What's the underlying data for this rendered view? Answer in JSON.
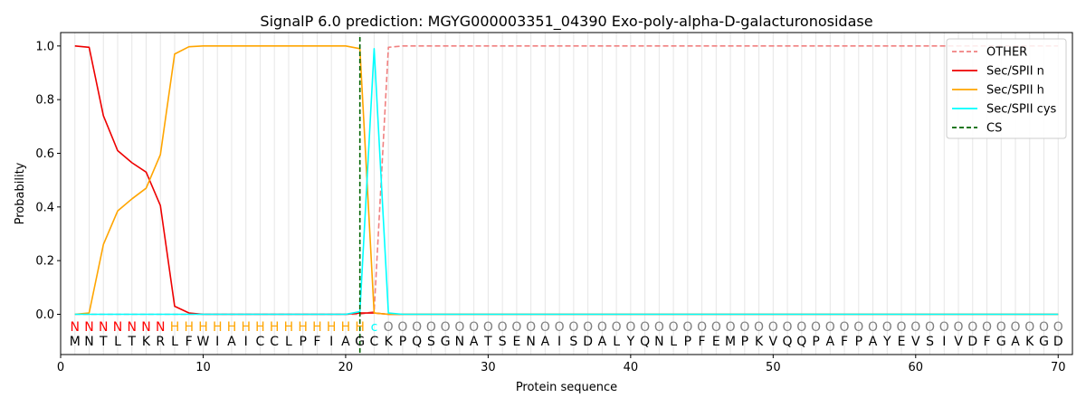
{
  "chart_data": {
    "type": "line",
    "title": "SignalP 6.0 prediction: MGYG000003351_04390 Exo-poly-alpha-D-galacturonosidase",
    "xlabel": "Protein sequence",
    "ylabel": "Probability",
    "xlim": [
      0,
      71
    ],
    "ylim": [
      -0.15,
      1.05
    ],
    "xticks": [
      0,
      10,
      20,
      30,
      40,
      50,
      60,
      70
    ],
    "yticks": [
      0.0,
      0.2,
      0.4,
      0.6,
      0.8,
      1.0
    ],
    "ytick_labels": [
      "0.0",
      "0.2",
      "0.4",
      "0.6",
      "0.8",
      "1.0"
    ],
    "legend_position": "top-right",
    "sequence": [
      "M",
      "N",
      "T",
      "L",
      "T",
      "K",
      "R",
      "L",
      "F",
      "W",
      "I",
      "A",
      "I",
      "C",
      "C",
      "L",
      "P",
      "F",
      "I",
      "A",
      "G",
      "C",
      "K",
      "P",
      "Q",
      "S",
      "G",
      "N",
      "A",
      "T",
      "S",
      "E",
      "N",
      "A",
      "I",
      "S",
      "D",
      "A",
      "L",
      "Y",
      "Q",
      "N",
      "L",
      "P",
      "F",
      "E",
      "M",
      "P",
      "K",
      "V",
      "Q",
      "Q",
      "P",
      "A",
      "F",
      "P",
      "A",
      "Y",
      "E",
      "V",
      "S",
      "I",
      "V",
      "D",
      "F",
      "G",
      "A",
      "K",
      "G",
      "D"
    ],
    "regions": [
      "N",
      "N",
      "N",
      "N",
      "N",
      "N",
      "N",
      "H",
      "H",
      "H",
      "H",
      "H",
      "H",
      "H",
      "H",
      "H",
      "H",
      "H",
      "H",
      "H",
      "H",
      "c",
      "O",
      "O",
      "O",
      "O",
      "O",
      "O",
      "O",
      "O",
      "O",
      "O",
      "O",
      "O",
      "O",
      "O",
      "O",
      "O",
      "O",
      "O",
      "O",
      "O",
      "O",
      "O",
      "O",
      "O",
      "O",
      "O",
      "O",
      "O",
      "O",
      "O",
      "O",
      "O",
      "O",
      "O",
      "O",
      "O",
      "O",
      "O",
      "O",
      "O",
      "O",
      "O",
      "O",
      "O",
      "O",
      "O",
      "O",
      "O"
    ],
    "region_colors": {
      "N": "#ff0000",
      "H": "#ffa500",
      "c": "#00ffff",
      "O": "#808080"
    },
    "cleavage_site": 21,
    "series": [
      {
        "name": "OTHER",
        "color": "#f08080",
        "dash": "dashed",
        "values": [
          0,
          0,
          0,
          0,
          0,
          0,
          0,
          0,
          0,
          0,
          0,
          0,
          0,
          0,
          0,
          0,
          0,
          0,
          0,
          0,
          0,
          0.01,
          0.995,
          1,
          1,
          1,
          1,
          1,
          1,
          1,
          1,
          1,
          1,
          1,
          1,
          1,
          1,
          1,
          1,
          1,
          1,
          1,
          1,
          1,
          1,
          1,
          1,
          1,
          1,
          1,
          1,
          1,
          1,
          1,
          1,
          1,
          1,
          1,
          1,
          1,
          1,
          1,
          1,
          1,
          1,
          1,
          1,
          1,
          1,
          1
        ]
      },
      {
        "name": "Sec/SPII n",
        "color": "#ee0000",
        "dash": "solid",
        "values": [
          1.0,
          0.995,
          0.74,
          0.61,
          0.565,
          0.53,
          0.405,
          0.03,
          0.005,
          0,
          0,
          0,
          0,
          0,
          0,
          0,
          0,
          0,
          0,
          0,
          0.005,
          0.005,
          0,
          0,
          0,
          0,
          0,
          0,
          0,
          0,
          0,
          0,
          0,
          0,
          0,
          0,
          0,
          0,
          0,
          0,
          0,
          0,
          0,
          0,
          0,
          0,
          0,
          0,
          0,
          0,
          0,
          0,
          0,
          0,
          0,
          0,
          0,
          0,
          0,
          0,
          0,
          0,
          0,
          0,
          0,
          0,
          0,
          0,
          0,
          0
        ]
      },
      {
        "name": "Sec/SPII h",
        "color": "#ffa500",
        "dash": "solid",
        "values": [
          0,
          0.005,
          0.26,
          0.385,
          0.43,
          0.47,
          0.595,
          0.97,
          0.997,
          1.0,
          1.0,
          1.0,
          1.0,
          1.0,
          1.0,
          1.0,
          1.0,
          1.0,
          1.0,
          1.0,
          0.99,
          0.005,
          0,
          0,
          0,
          0,
          0,
          0,
          0,
          0,
          0,
          0,
          0,
          0,
          0,
          0,
          0,
          0,
          0,
          0,
          0,
          0,
          0,
          0,
          0,
          0,
          0,
          0,
          0,
          0,
          0,
          0,
          0,
          0,
          0,
          0,
          0,
          0,
          0,
          0,
          0,
          0,
          0,
          0,
          0,
          0,
          0,
          0,
          0,
          0
        ]
      },
      {
        "name": "Sec/SPII cys",
        "color": "#00ffff",
        "dash": "solid",
        "values": [
          0,
          0,
          0,
          0,
          0,
          0,
          0,
          0,
          0,
          0,
          0,
          0,
          0,
          0,
          0,
          0,
          0,
          0,
          0,
          0,
          0.01,
          0.99,
          0.005,
          0,
          0,
          0,
          0,
          0,
          0,
          0,
          0,
          0,
          0,
          0,
          0,
          0,
          0,
          0,
          0,
          0,
          0,
          0,
          0,
          0,
          0,
          0,
          0,
          0,
          0,
          0,
          0,
          0,
          0,
          0,
          0,
          0,
          0,
          0,
          0,
          0,
          0,
          0,
          0,
          0,
          0,
          0,
          0,
          0,
          0,
          0
        ]
      },
      {
        "name": "CS",
        "color": "#006400",
        "dash": "dashed",
        "values": []
      }
    ]
  }
}
